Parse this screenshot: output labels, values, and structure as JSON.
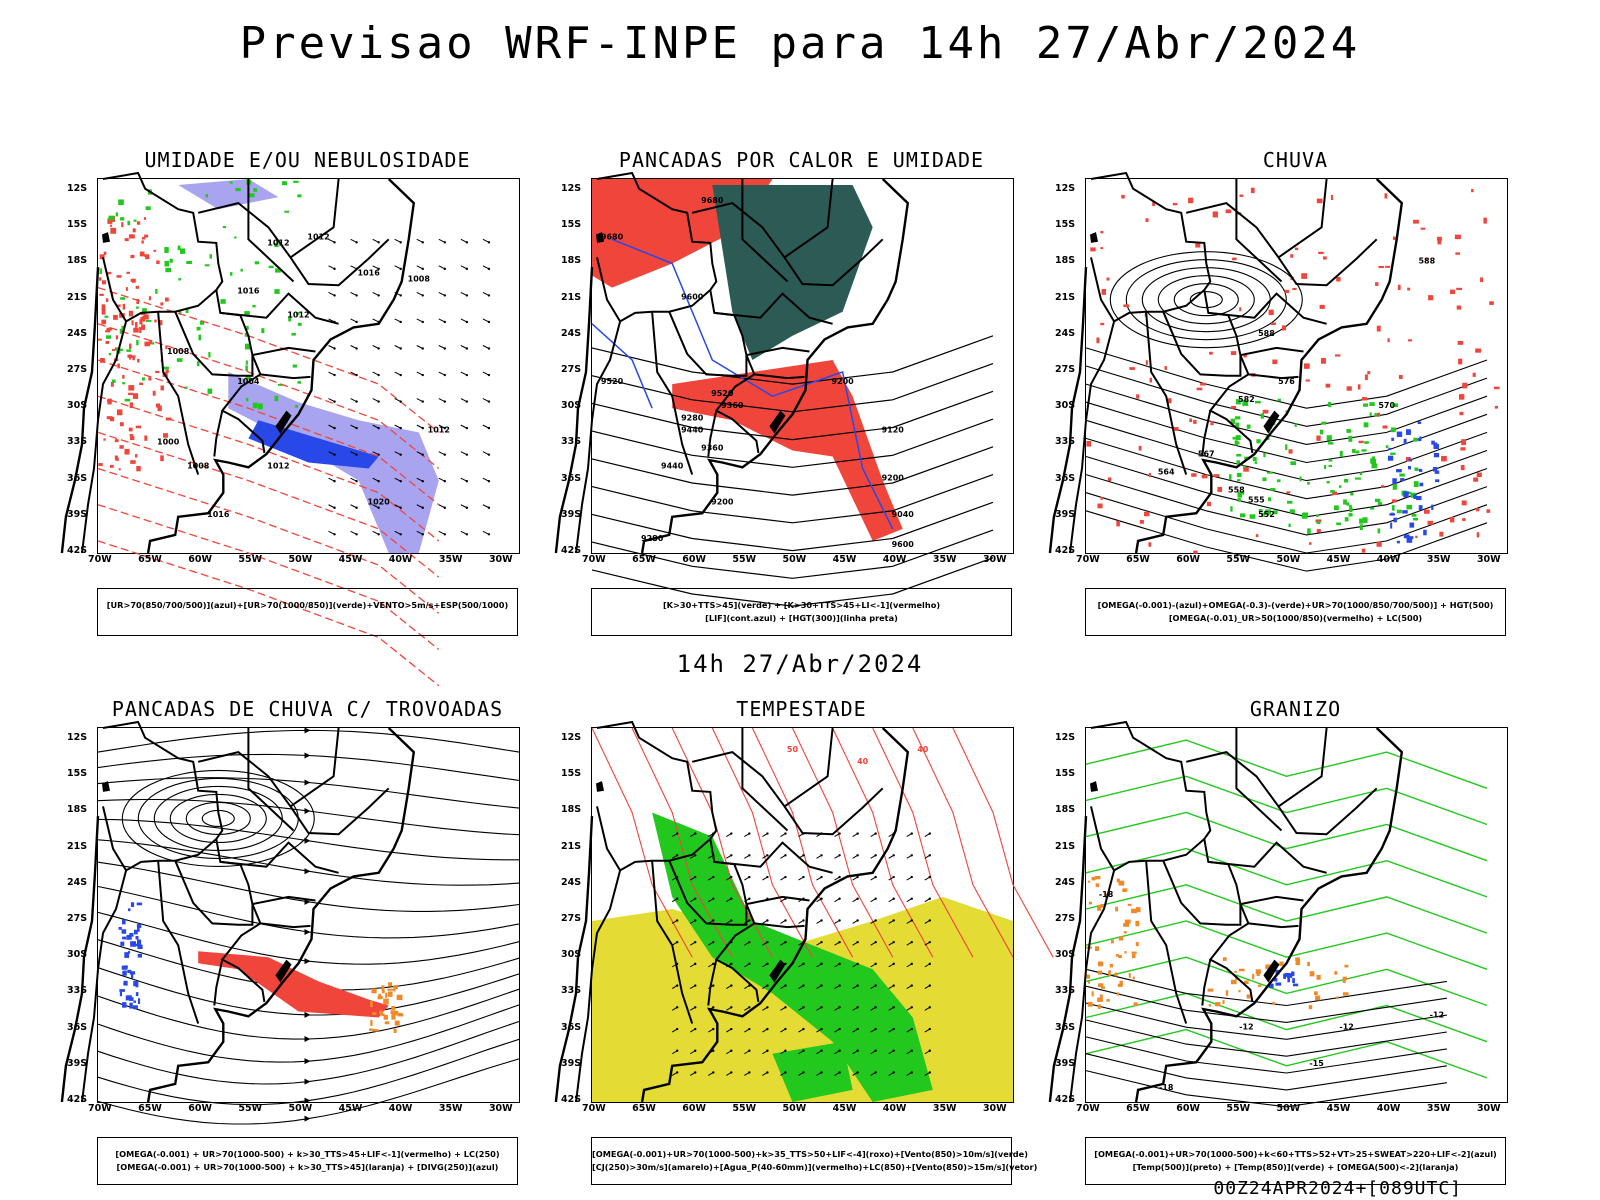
{
  "header": {
    "title": "Previsao WRF-INPE  para 14h 27/Abr/2024"
  },
  "mid_title": "14h 27/Abr/2024",
  "footer": "00Z24APR2024+[089UTC]",
  "axes": {
    "lat_labels": [
      "12S",
      "15S",
      "18S",
      "21S",
      "24S",
      "27S",
      "30S",
      "33S",
      "36S",
      "39S",
      "42S"
    ],
    "lon_labels": [
      "70W",
      "65W",
      "60W",
      "55W",
      "50W",
      "45W",
      "40W",
      "35W",
      "30W"
    ]
  },
  "panels": [
    {
      "title": "UMIDADE E/OU NEBULOSIDADE",
      "legend": [
        "[UR>70(850/700/500)](azul)+[UR>70(1000/850)](verde)+VENTO>5m/s+ESP(500/1000)"
      ],
      "contour_labels": [
        "1012",
        "1012",
        "1016",
        "1008",
        "1016",
        "1012",
        "1008",
        "1004",
        "1000",
        "1008",
        "1012",
        "1016",
        "1020"
      ]
    },
    {
      "title": "PANCADAS POR CALOR E UMIDADE",
      "legend": [
        "[K>30+TTS>45](verde) + [K>30+TTS>45+LI<-1](vermelho)",
        "[LIF](cont.azul) + [HGT(300)](linha preta)"
      ],
      "contour_labels": [
        "9680",
        "9680",
        "9600",
        "9520",
        "9520",
        "9440",
        "9440",
        "9360",
        "9280",
        "9200",
        "9200",
        "9120",
        "9040",
        "9600",
        "9360",
        "9280",
        "9200"
      ]
    },
    {
      "title": "CHUVA",
      "legend": [
        "[OMEGA(-0.001)-(azul)+OMEGA(-0.3)-(verde)+UR>70(1000/850/700/500)] + HGT(500)",
        "[OMEGA(-0.01)_UR>50(1000/850)(vermelho) + LC(500)"
      ],
      "contour_labels": [
        "588",
        "588",
        "582",
        "576",
        "570",
        "567",
        "564",
        "558",
        "555",
        "552"
      ]
    },
    {
      "title": "PANCADAS DE CHUVA C/ TROVOADAS",
      "legend": [
        "[OMEGA(-0.001) + UR>70(1000-500) + k>30_TTS>45+LIF<-1](vermelho) + LC(250)",
        "[OMEGA(-0.001) + UR>70(1000-500) + k>30_TTS>45](laranja) + [DIVG(250)](azul)"
      ],
      "contour_labels": []
    },
    {
      "title": "TEMPESTADE",
      "legend": [
        "[OMEGA(-0.001)+UR>70(1000-500)+k>35_TTS>50+LIF<-4](roxo)+[Vento(850)>10m/s](verde)",
        "[CJ(250)>30m/s](amarelo)+[Agua_P(40-60mm)](vermelho)+LC(850)+[Vento(850)>15m/s](vetor)"
      ],
      "contour_labels": [
        "50",
        "40",
        "40"
      ]
    },
    {
      "title": "GRANIZO",
      "legend": [
        "[OMEGA(-0.001)+UR>70(1000-500)+k<60+TTS>52+VT>25+SWEAT>220+LIF<-2](azul)",
        "[Temp(500)](preto) + [Temp(850)](verde) + [OMEGA(500)<-2](laranja)"
      ],
      "contour_labels": [
        "-12",
        "-12",
        "-12",
        "-15",
        "-18",
        "-18"
      ]
    }
  ],
  "colors": {
    "red": "#f0453b",
    "dark_green": "#2c5a55",
    "green": "#22c81e",
    "blue": "#2848e8",
    "lavender": "#a8a4f0",
    "yellow": "#e4dc34",
    "orange": "#f08a28",
    "contour": "#000000"
  }
}
